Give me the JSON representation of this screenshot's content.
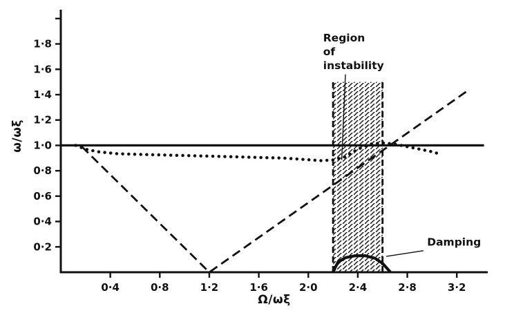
{
  "figure": {
    "background": "#ffffff",
    "ink": "#111111"
  },
  "chart_data": {
    "type": "line",
    "title": "",
    "xlabel": "Ω/ωξ",
    "ylabel": "ω/ωξ",
    "xlim": [
      0,
      3.45
    ],
    "ylim": [
      0,
      2.07
    ],
    "grid": false,
    "legend_position": "none",
    "xticks": [
      0.4,
      0.8,
      1.2,
      1.6,
      2.0,
      2.4,
      2.8,
      3.2
    ],
    "xtick_labels": [
      "0·4",
      "0·8",
      "1·2",
      "1·6",
      "2·0",
      "2·4",
      "2·8",
      "3·2"
    ],
    "yticks": [
      0.2,
      0.4,
      0.6,
      0.8,
      1.0,
      1.2,
      1.4,
      1.6,
      1.8,
      2.0
    ],
    "ytick_labels": [
      "0·2",
      "0·4",
      "0·6",
      "0·8",
      "1·0",
      "1·2",
      "1·4",
      "1·6",
      "1·8",
      ""
    ],
    "series": [
      {
        "name": "natural-frequency-line",
        "style": "solid",
        "width": 3.2,
        "x": [
          0,
          3.42
        ],
        "y": [
          1.0,
          1.0
        ]
      },
      {
        "name": "whirl-frequency-line",
        "style": "dashed",
        "width": 2.8,
        "x": [
          0.17,
          1.2,
          3.3
        ],
        "y": [
          0.99,
          0.0,
          1.44
        ]
      },
      {
        "name": "measured-frequency-curve",
        "style": "dotted",
        "width": 4.5,
        "x": [
          0.12,
          0.2,
          0.3,
          0.45,
          0.6,
          0.8,
          1.0,
          1.2,
          1.4,
          1.6,
          1.8,
          1.95,
          2.1,
          2.2,
          2.3,
          2.4,
          2.5,
          2.6,
          2.7,
          2.8,
          2.9,
          3.0,
          3.07
        ],
        "y": [
          1.0,
          0.97,
          0.95,
          0.935,
          0.93,
          0.925,
          0.92,
          0.915,
          0.91,
          0.905,
          0.9,
          0.89,
          0.88,
          0.885,
          0.91,
          0.97,
          1.01,
          1.02,
          1.01,
          0.99,
          0.97,
          0.95,
          0.93
        ]
      },
      {
        "name": "damping-curve",
        "style": "solid",
        "width": 4.2,
        "x": [
          2.2,
          2.24,
          2.3,
          2.38,
          2.46,
          2.54,
          2.6,
          2.66
        ],
        "y": [
          0.005,
          0.08,
          0.115,
          0.13,
          0.13,
          0.11,
          0.07,
          0.005
        ]
      }
    ],
    "instability_band": {
      "x0": 2.2,
      "x1": 2.6,
      "y0": 0,
      "y1": 1.5
    },
    "annotations": [
      {
        "name": "region-of-instability-label",
        "lines": [
          "Region",
          "of",
          "instability"
        ],
        "x": 2.12,
        "y": 1.82,
        "anchor": "start"
      },
      {
        "name": "damping-label",
        "lines": [
          "Damping"
        ],
        "x": 2.96,
        "y": 0.21,
        "anchor": "start"
      }
    ],
    "leader_lines": [
      {
        "name": "region-of-instability-pointer",
        "x1": 2.3,
        "y1": 1.56,
        "x2": 2.27,
        "y2": 0.885
      },
      {
        "name": "damping-pointer",
        "x1": 2.93,
        "y1": 0.17,
        "x2": 2.63,
        "y2": 0.125
      }
    ]
  }
}
